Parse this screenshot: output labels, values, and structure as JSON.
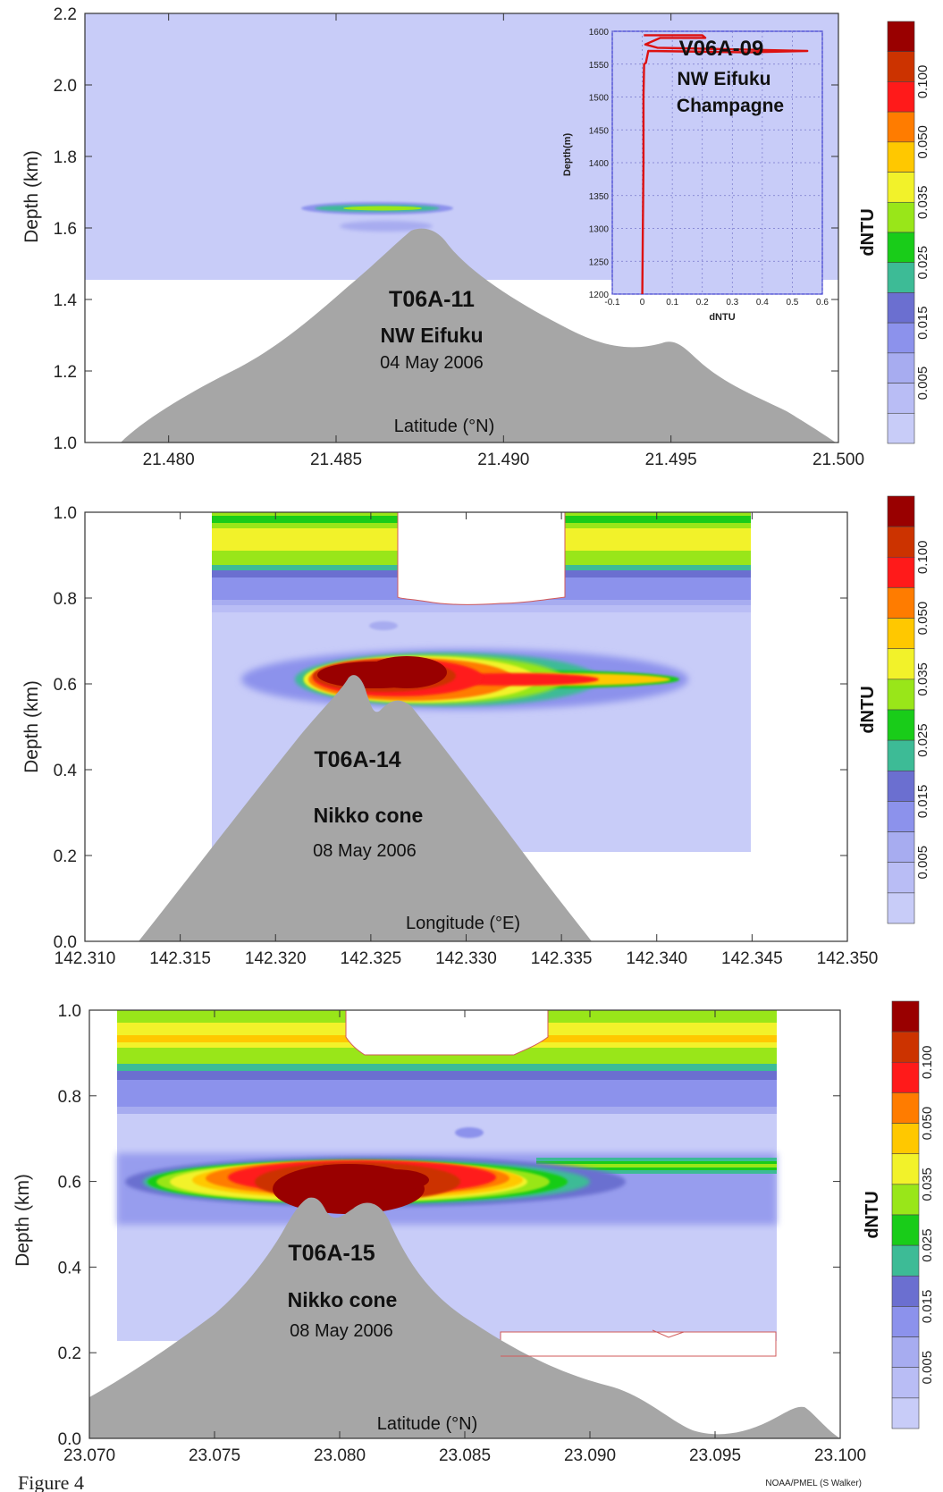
{
  "figure_caption": "Figure 4",
  "credit": "NOAA/PMEL (S Walker)",
  "colorbar": {
    "label": "dNTU",
    "tick_labels": [
      "0.005",
      "0.015",
      "0.025",
      "0.035",
      "0.050",
      "0.100"
    ],
    "colors": [
      "#c8ccf8",
      "#b9bdf5",
      "#a7acf0",
      "#8c92ec",
      "#6b6fd0",
      "#3dbb96",
      "#19cc19",
      "#99e619",
      "#f2f22a",
      "#ffc800",
      "#ff7c00",
      "#ff1a1a",
      "#cc3300",
      "#990000"
    ]
  },
  "chart_data": [
    {
      "type": "heatmap",
      "title": "",
      "xlabel": "Latitude (°N)",
      "ylabel": "Depth (km)",
      "xlim": [
        21.4775,
        21.5
      ],
      "ylim": [
        2.2,
        1.0
      ],
      "x_tick_labels": [
        "21.480",
        "21.485",
        "21.490",
        "21.495",
        "21.500"
      ],
      "y_tick_labels": [
        "1.0",
        "1.2",
        "1.4",
        "1.6",
        "1.8",
        "2.0",
        "2.2"
      ],
      "annotations": {
        "tow": "T06A-11",
        "site": "NW Eifuku",
        "date": "04 May 2006"
      },
      "inset": {
        "type": "line",
        "title": "V06A-09",
        "subtitle_1": "NW Eifuku",
        "subtitle_2": "Champagne",
        "xlabel": "dNTU",
        "ylabel": "Depth(m)",
        "xlim": [
          -0.1,
          0.6
        ],
        "ylim": [
          1600,
          1200
        ],
        "x_tick_labels": [
          "-0.1",
          "0",
          "0.1",
          "0.2",
          "0.3",
          "0.4",
          "0.5",
          "0.6"
        ],
        "y_tick_labels": [
          "1200",
          "1250",
          "1300",
          "1350",
          "1400",
          "1450",
          "1500",
          "1550",
          "1600"
        ],
        "x": [
          0.0,
          0.002,
          0.004,
          0.004,
          0.006,
          0.012,
          0.02,
          0.35,
          0.55,
          0.05,
          0.01,
          0.06,
          0.21,
          0.2,
          0.005
        ],
        "y": [
          1200,
          1300,
          1400,
          1500,
          1550,
          1552,
          1570,
          1568,
          1570,
          1575,
          1580,
          1590,
          1590,
          1594,
          1594
        ]
      }
    },
    {
      "type": "heatmap",
      "title": "",
      "xlabel": "Longitude (°E)",
      "ylabel": "Depth (km)",
      "xlim": [
        142.31,
        142.35
      ],
      "ylim": [
        1.0,
        0.0
      ],
      "x_tick_labels": [
        "142.310",
        "142.315",
        "142.320",
        "142.325",
        "142.330",
        "142.335",
        "142.340",
        "142.345",
        "142.350"
      ],
      "y_tick_labels": [
        "0.0",
        "0.2",
        "0.4",
        "0.6",
        "0.8",
        "1.0"
      ],
      "annotations": {
        "tow": "T06A-14",
        "site": "Nikko cone",
        "date": "08 May 2006"
      }
    },
    {
      "type": "heatmap",
      "title": "",
      "xlabel": "Latitude (°N)",
      "ylabel": "Depth (km)",
      "xlim": [
        23.07,
        23.1
      ],
      "ylim": [
        1.0,
        0.0
      ],
      "x_tick_labels": [
        "23.070",
        "23.075",
        "23.080",
        "23.085",
        "23.090",
        "23.095",
        "23.100"
      ],
      "y_tick_labels": [
        "0.0",
        "0.2",
        "0.4",
        "0.6",
        "0.8",
        "1.0"
      ],
      "annotations": {
        "tow": "T06A-15",
        "site": "Nikko cone",
        "date": "08 May 2006"
      }
    }
  ]
}
